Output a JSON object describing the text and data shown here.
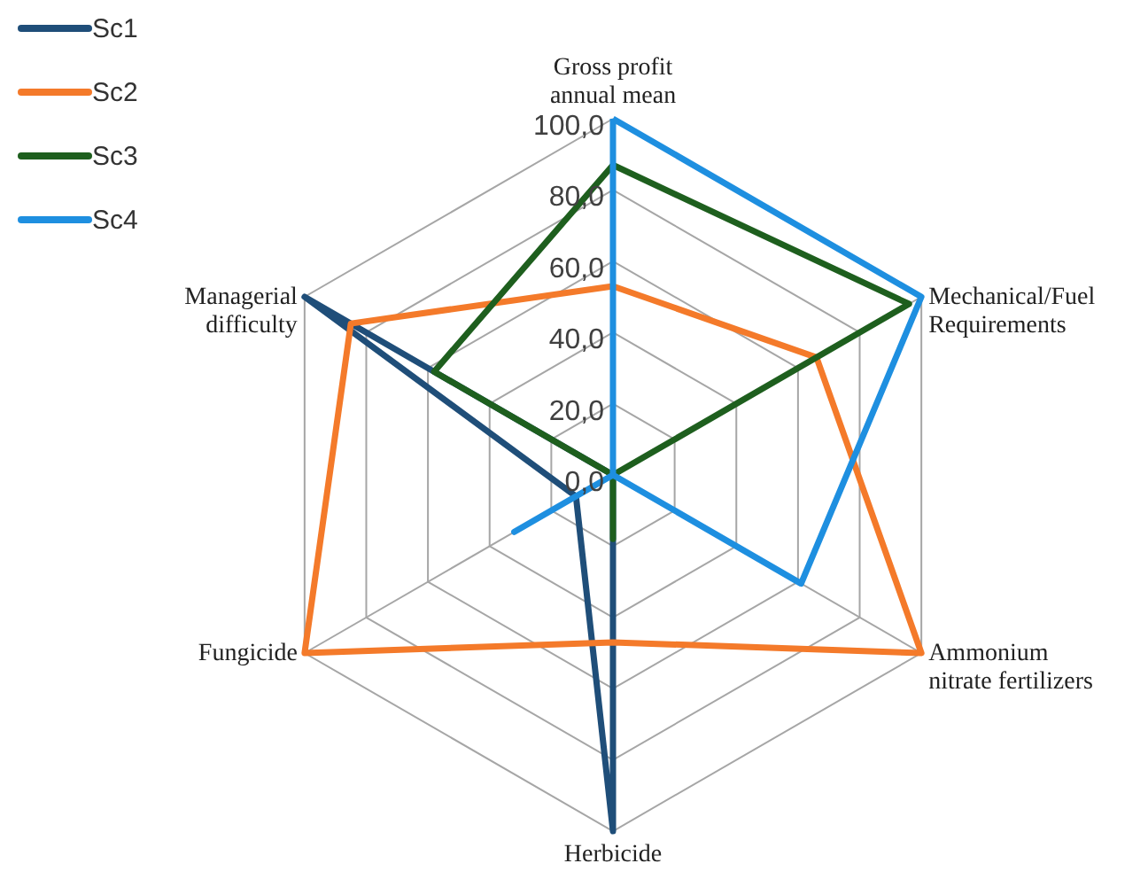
{
  "chart_data": {
    "type": "radar",
    "categories": [
      "Gross profit annual mean",
      "Mechanical/Fuel Requirements",
      "Ammonium nitrate fertilizers",
      "Herbicide",
      "Fungicide",
      "Managerial difficulty"
    ],
    "series": [
      {
        "name": "Sc1",
        "color": "#1f4e79",
        "values": [
          0,
          0,
          0,
          100,
          12,
          100
        ]
      },
      {
        "name": "Sc2",
        "color": "#f47a2a",
        "values": [
          53,
          66,
          100,
          47,
          100,
          85
        ]
      },
      {
        "name": "Sc3",
        "color": "#1e5f1e",
        "values": [
          87,
          96,
          0,
          18,
          0,
          58
        ]
      },
      {
        "name": "Sc4",
        "color": "#1e8fe0",
        "values": [
          100,
          100,
          61,
          0,
          32,
          0
        ]
      }
    ],
    "ylim": [
      0,
      100
    ],
    "yticks": [
      {
        "value": 0,
        "label": "0,0"
      },
      {
        "value": 20,
        "label": "20,0"
      },
      {
        "value": 40,
        "label": "40,0"
      },
      {
        "value": 60,
        "label": "60,0"
      },
      {
        "value": 80,
        "label": "80,0"
      },
      {
        "value": 100,
        "label": "100,0"
      }
    ],
    "grid": true,
    "legend": "top left",
    "marker": "none",
    "line_style": "solid"
  }
}
